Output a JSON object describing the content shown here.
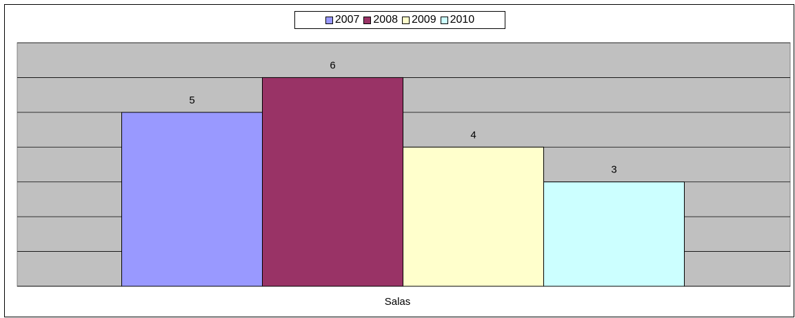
{
  "chart_data": {
    "type": "bar",
    "categories": [
      "Salas"
    ],
    "series": [
      {
        "name": "2007",
        "values": [
          5
        ],
        "color": "#9999FF"
      },
      {
        "name": "2008",
        "values": [
          6
        ],
        "color": "#993366"
      },
      {
        "name": "2009",
        "values": [
          4
        ],
        "color": "#FFFFCC"
      },
      {
        "name": "2010",
        "values": [
          3
        ],
        "color": "#CCFFFF"
      }
    ],
    "ylim": [
      0,
      7
    ],
    "grid": true,
    "legend_position": "top-center",
    "plot_background": "#C0C0C0",
    "show_data_labels": true
  }
}
